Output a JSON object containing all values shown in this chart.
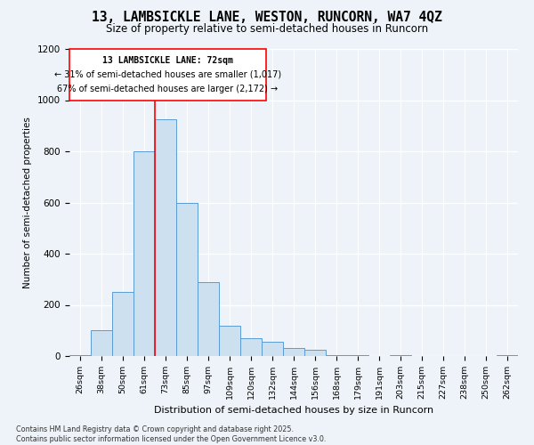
{
  "title_line1": "13, LAMBSICKLE LANE, WESTON, RUNCORN, WA7 4QZ",
  "title_line2": "Size of property relative to semi-detached houses in Runcorn",
  "xlabel": "Distribution of semi-detached houses by size in Runcorn",
  "ylabel": "Number of semi-detached properties",
  "categories": [
    "26sqm",
    "38sqm",
    "50sqm",
    "61sqm",
    "73sqm",
    "85sqm",
    "97sqm",
    "109sqm",
    "120sqm",
    "132sqm",
    "144sqm",
    "156sqm",
    "168sqm",
    "179sqm",
    "191sqm",
    "203sqm",
    "215sqm",
    "227sqm",
    "238sqm",
    "250sqm",
    "262sqm"
  ],
  "values": [
    5,
    100,
    250,
    800,
    925,
    600,
    290,
    120,
    70,
    55,
    30,
    25,
    5,
    5,
    0,
    5,
    0,
    0,
    0,
    0,
    5
  ],
  "bar_color": "#cce0f0",
  "bar_edge_color": "#5b9bd5",
  "marker_index": 4,
  "annotation_label": "13 LAMBSICKLE LANE: 72sqm",
  "annotation_smaller": "← 31% of semi-detached houses are smaller (1,017)",
  "annotation_larger": "67% of semi-detached houses are larger (2,172) →",
  "ylim": [
    0,
    1200
  ],
  "yticks": [
    0,
    200,
    400,
    600,
    800,
    1000,
    1200
  ],
  "footer_line1": "Contains HM Land Registry data © Crown copyright and database right 2025.",
  "footer_line2": "Contains public sector information licensed under the Open Government Licence v3.0.",
  "bg_color": "#edf3f8",
  "plot_bg_color": "#edf3f8"
}
